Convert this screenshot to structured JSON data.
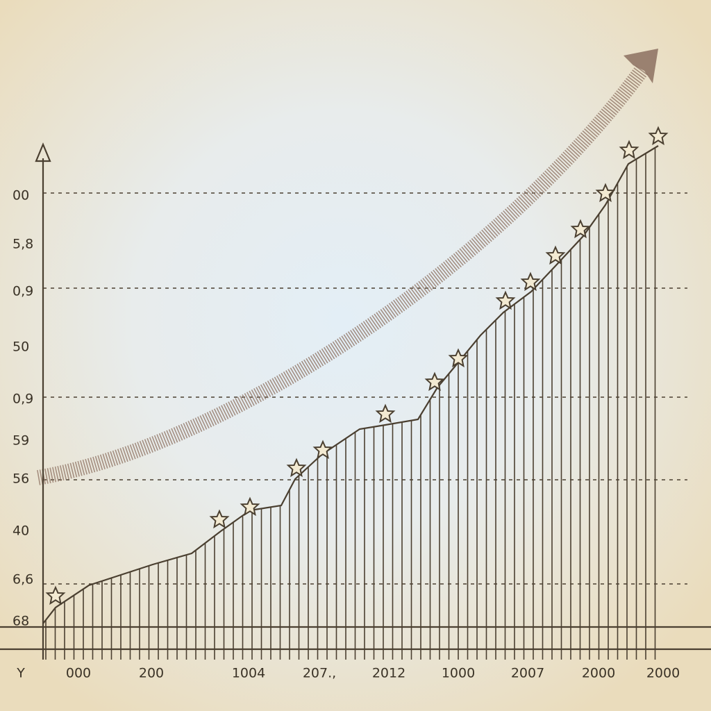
{
  "y_axis_labels": [
    "00",
    "5,8",
    "0,9",
    "50",
    "0,9",
    "59",
    "56",
    "40",
    "6,6",
    "68"
  ],
  "x_axis_labels": [
    "Y",
    "000",
    "200",
    "1004",
    "207.,",
    "2012",
    "1000",
    "2007",
    "2000",
    "2000"
  ]
}
